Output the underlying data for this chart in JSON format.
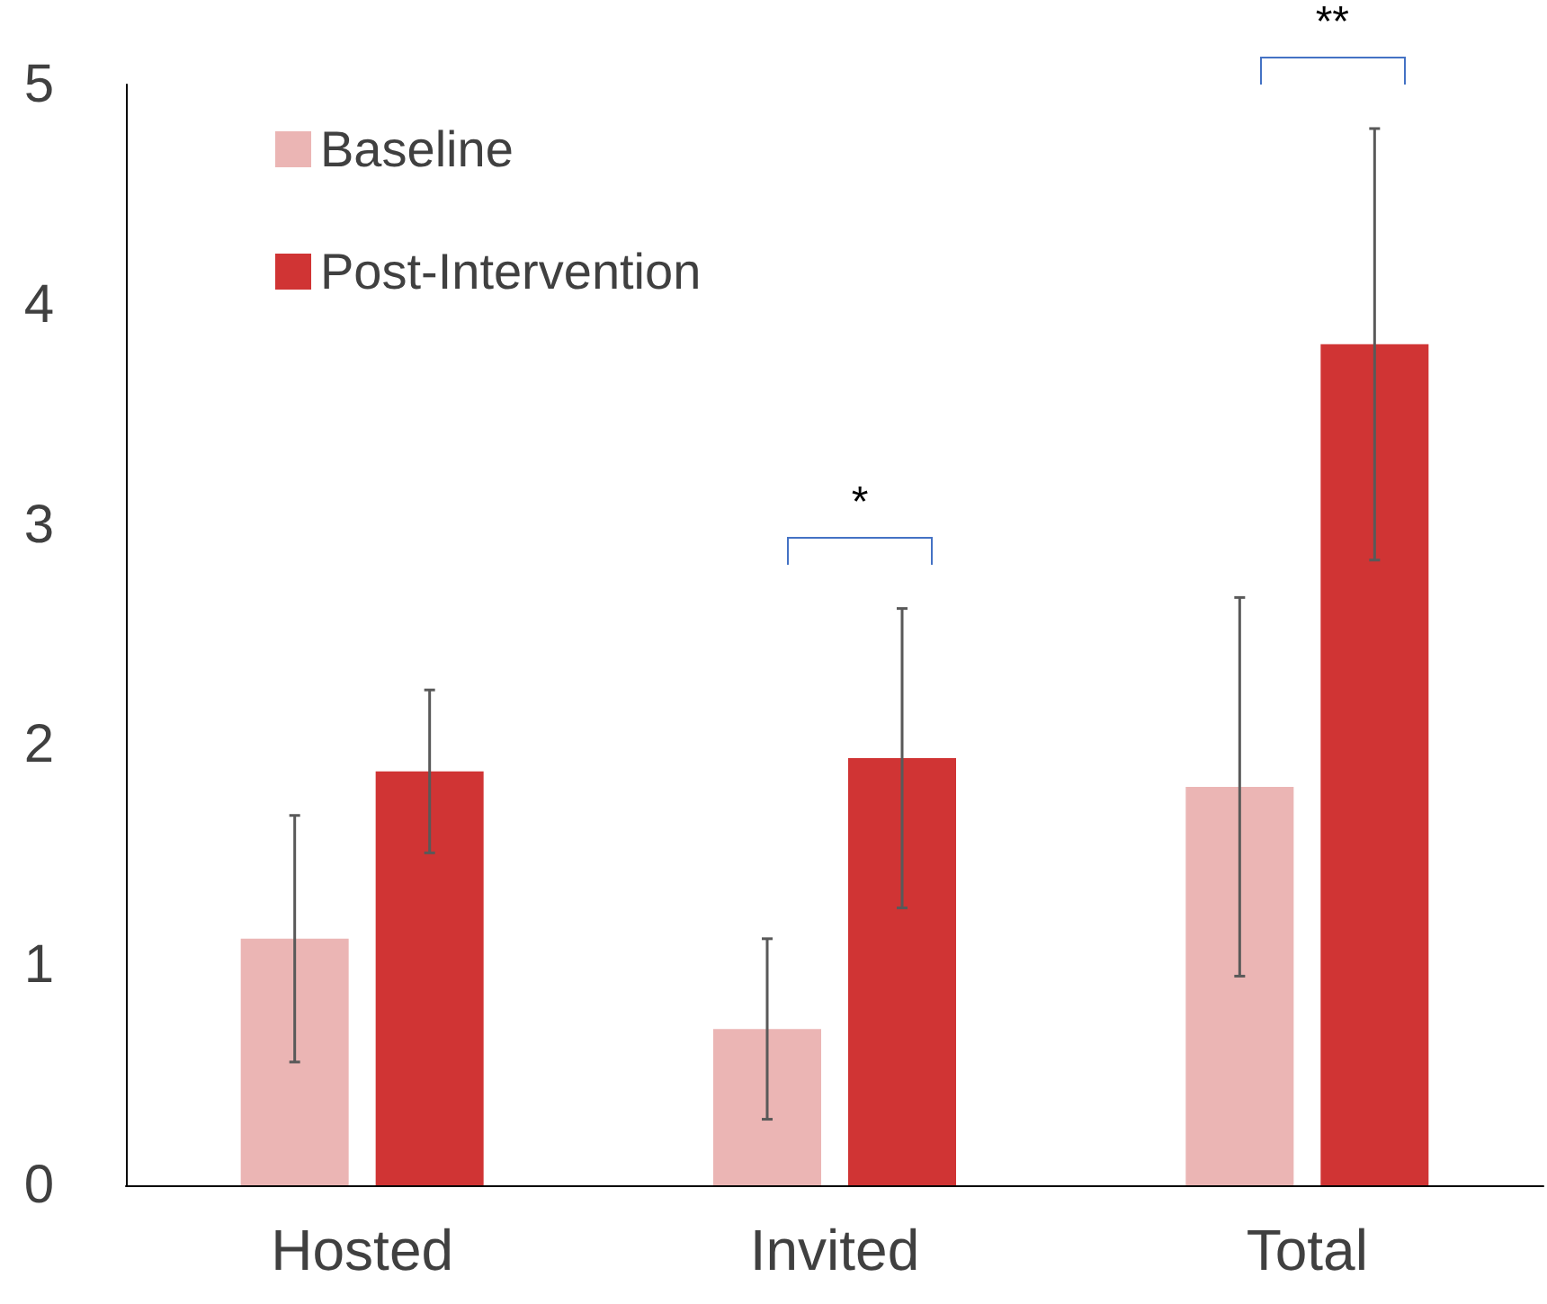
{
  "chart_data": {
    "type": "bar",
    "categories": [
      "Hosted",
      "Invited",
      "Total"
    ],
    "series": [
      {
        "name": "Baseline",
        "color": "#ebb5b4",
        "values": [
          1.12,
          0.71,
          1.81
        ],
        "errors": [
          0.56,
          0.41,
          0.86
        ]
      },
      {
        "name": "Post-Intervention",
        "color": "#d03434",
        "values": [
          1.88,
          1.94,
          3.82
        ],
        "errors": [
          0.37,
          0.68,
          0.98
        ]
      }
    ],
    "ylim": [
      0,
      5
    ],
    "yticks": [
      0,
      1,
      2,
      3,
      4,
      5
    ],
    "grid": false,
    "legend": "top left",
    "annotations": [
      "*",
      "**"
    ]
  }
}
